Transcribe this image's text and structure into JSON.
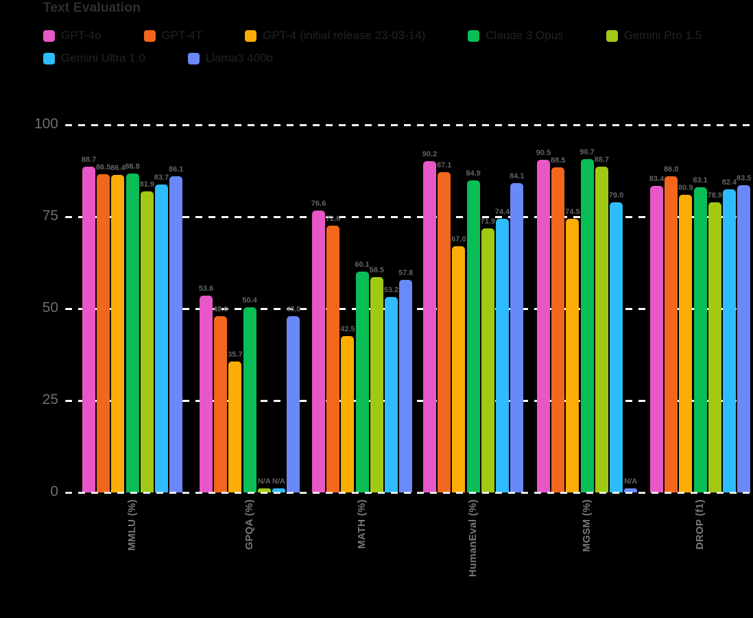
{
  "title": "Text Evaluation",
  "axes": {
    "yticks": [
      0,
      25,
      50,
      75,
      100
    ],
    "na_label": "N/A"
  },
  "colors": {
    "background": "#000000",
    "gridline": "#ffffff",
    "title_text": "#2f2f2f",
    "legend_text": "#232323",
    "value_label_text": "#646464",
    "ytick_text": "#6f6f6f",
    "xlabel_text": "#787878"
  },
  "chart_data": {
    "type": "bar",
    "title": "Text Evaluation",
    "categories": [
      "MMLU (%)",
      "GPQA (%)",
      "MATH (%)",
      "HumanEval (%)",
      "MGSM (%)",
      "DROP (f1)"
    ],
    "series": [
      {
        "name": "GPT-4o",
        "color": "#e857c6",
        "values": [
          88.7,
          53.6,
          76.6,
          90.2,
          90.5,
          83.4
        ]
      },
      {
        "name": "GPT-4T",
        "color": "#f2671d",
        "values": [
          86.5,
          48.0,
          72.6,
          87.1,
          88.5,
          86.0
        ]
      },
      {
        "name": "GPT-4 (initial release 23-03-14)",
        "color": "#fcad05",
        "values": [
          86.4,
          35.7,
          42.5,
          67.0,
          74.5,
          80.9
        ]
      },
      {
        "name": "Claude 3 Opus",
        "color": "#09bd57",
        "values": [
          86.8,
          50.4,
          60.1,
          84.9,
          90.7,
          83.1
        ]
      },
      {
        "name": "Gemini Pro 1.5",
        "color": "#a1c913",
        "values": [
          81.9,
          null,
          58.5,
          71.9,
          88.7,
          78.9
        ]
      },
      {
        "name": "Gemini Ultra 1.0",
        "color": "#2fbcfc",
        "values": [
          83.7,
          null,
          53.2,
          74.4,
          79.0,
          82.4
        ]
      },
      {
        "name": "Llama3 400b",
        "color": "#6a88f7",
        "values": [
          86.1,
          48.0,
          57.8,
          84.1,
          null,
          83.5
        ]
      }
    ],
    "ylim": [
      0,
      100
    ],
    "grid": "horizontal-dashed-white",
    "legend_position": "top"
  }
}
